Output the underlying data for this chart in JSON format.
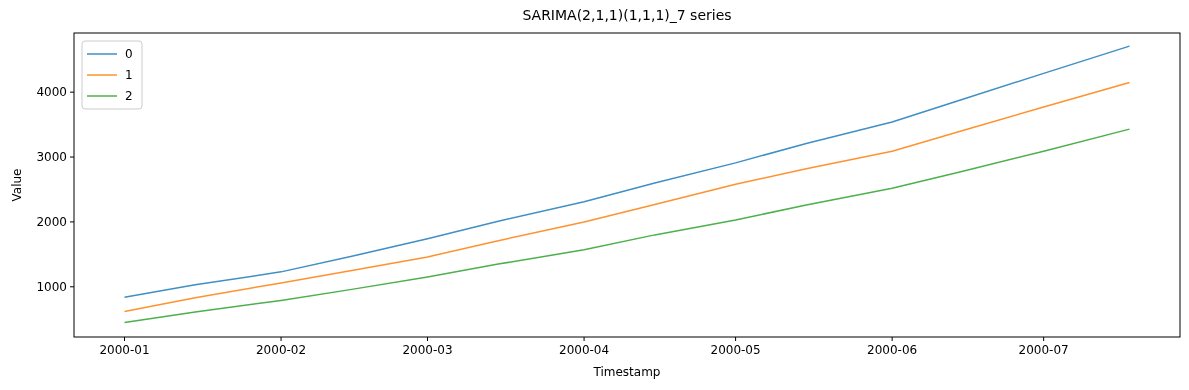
{
  "chart_data": {
    "type": "line",
    "title": "SARIMA(2,1,1)(1,1,1)_7 series",
    "xlabel": "Timestamp",
    "ylabel": "Value",
    "x": [
      "2000-01-01",
      "2000-01-15",
      "2000-02-01",
      "2000-02-15",
      "2000-03-01",
      "2000-03-15",
      "2000-04-01",
      "2000-04-15",
      "2000-05-01",
      "2000-05-15",
      "2000-06-01",
      "2000-06-15",
      "2000-07-01",
      "2000-07-18"
    ],
    "series": [
      {
        "name": "0",
        "color": "#3f8fc5",
        "values": [
          840,
          1030,
          1230,
          1470,
          1740,
          2010,
          2310,
          2600,
          2910,
          3210,
          3540,
          3890,
          4290,
          4710
        ]
      },
      {
        "name": "1",
        "color": "#ff922f",
        "values": [
          620,
          830,
          1060,
          1250,
          1460,
          1710,
          2000,
          2270,
          2580,
          2820,
          3090,
          3410,
          3770,
          4150
        ]
      },
      {
        "name": "2",
        "color": "#4cb04c",
        "values": [
          450,
          610,
          790,
          960,
          1150,
          1350,
          1570,
          1800,
          2030,
          2260,
          2520,
          2780,
          3090,
          3430
        ]
      }
    ],
    "xlim": [
      "1999-12-22",
      "2000-07-28"
    ],
    "xticks": [
      "2000-01",
      "2000-02",
      "2000-03",
      "2000-04",
      "2000-05",
      "2000-06",
      "2000-07"
    ],
    "ylim": [
      226,
      4912
    ],
    "yticks": [
      1000,
      2000,
      3000,
      4000
    ],
    "legend": "top left",
    "grid": false,
    "line_style": "solid"
  }
}
